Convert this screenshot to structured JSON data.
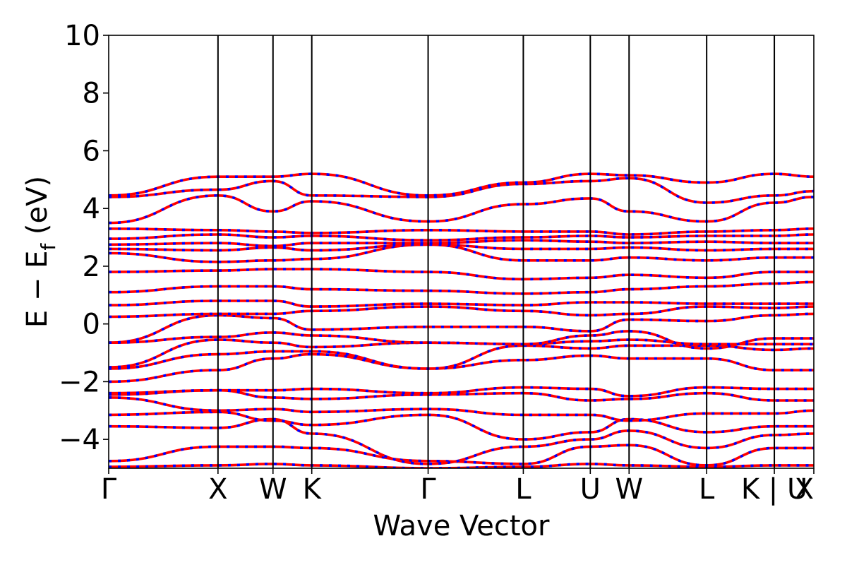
{
  "chart_data": {
    "type": "line",
    "title": "",
    "xlabel": "Wave Vector",
    "ylabel_main": "E − E",
    "ylabel_sub": "f",
    "ylabel_unit": " (eV)",
    "ylim": [
      -5,
      10
    ],
    "yticks": [
      -4,
      -2,
      0,
      2,
      4,
      6,
      8,
      10
    ],
    "ytick_labels": [
      "−4",
      "−2",
      "0",
      "2",
      "4",
      "6",
      "8",
      "10"
    ],
    "xlim": [
      0,
      1
    ],
    "kpoints": [
      {
        "label": "Γ",
        "x": 0.0
      },
      {
        "label": "X",
        "x": 0.155
      },
      {
        "label": "W",
        "x": 0.233
      },
      {
        "label": "K",
        "x": 0.288
      },
      {
        "label": "Γ",
        "x": 0.453
      },
      {
        "label": "L",
        "x": 0.588
      },
      {
        "label": "U",
        "x": 0.683
      },
      {
        "label": "W",
        "x": 0.738
      },
      {
        "label": "L",
        "x": 0.848
      },
      {
        "label": "K | U",
        "x": 0.944
      },
      {
        "label": "X",
        "x": 1.0
      }
    ],
    "series": [
      {
        "name": "",
        "color": "#ff0000",
        "style": "solid"
      },
      {
        "name": "",
        "color": "#0000ff",
        "style": "dashed"
      }
    ],
    "bands": [
      [
        -4.95,
        -4.9,
        -4.85,
        -4.9,
        -5.0,
        -4.95,
        -4.85,
        -4.9,
        -4.95,
        -4.9,
        -4.9
      ],
      [
        -4.75,
        -4.25,
        -4.25,
        -4.3,
        -4.75,
        -4.85,
        -4.25,
        -4.2,
        -4.9,
        -4.3,
        -4.3
      ],
      [
        -3.55,
        -3.6,
        -3.3,
        -3.8,
        -4.85,
        -4.25,
        -4.0,
        -3.7,
        -4.3,
        -3.85,
        -3.8
      ],
      [
        -3.15,
        -3.05,
        -3.35,
        -3.5,
        -3.15,
        -4.0,
        -3.75,
        -3.3,
        -3.75,
        -3.55,
        -3.55
      ],
      [
        -2.55,
        -3.0,
        -2.95,
        -3.05,
        -2.95,
        -3.15,
        -3.15,
        -3.35,
        -3.1,
        -3.1,
        -3.0
      ],
      [
        -2.45,
        -2.3,
        -2.55,
        -2.6,
        -2.45,
        -2.4,
        -2.65,
        -2.6,
        -2.4,
        -2.65,
        -2.65
      ],
      [
        -2.4,
        -2.3,
        -2.3,
        -2.25,
        -2.4,
        -2.2,
        -2.25,
        -2.5,
        -2.2,
        -2.25,
        -2.25
      ],
      [
        -2.0,
        -1.6,
        -1.2,
        -1.05,
        -1.55,
        -1.25,
        -1.1,
        -1.2,
        -1.2,
        -1.6,
        -1.6
      ],
      [
        -1.55,
        -1.05,
        -0.95,
        -0.95,
        -1.55,
        -0.75,
        -0.85,
        -0.75,
        -0.75,
        -0.9,
        -0.85
      ],
      [
        -1.5,
        -0.55,
        -0.65,
        -0.8,
        -0.65,
        -0.7,
        -0.6,
        -0.55,
        -0.7,
        -0.7,
        -0.7
      ],
      [
        -0.65,
        -0.45,
        -0.3,
        -0.4,
        -0.65,
        -0.7,
        -0.4,
        -0.25,
        -0.85,
        -0.5,
        -0.5
      ],
      [
        -0.65,
        0.3,
        0.2,
        -0.2,
        -0.1,
        -0.1,
        -0.25,
        0.15,
        0.1,
        0.3,
        0.35
      ],
      [
        0.25,
        0.35,
        0.35,
        0.45,
        0.6,
        0.45,
        0.3,
        0.35,
        0.6,
        0.55,
        0.6
      ],
      [
        0.65,
        0.8,
        0.8,
        0.6,
        0.7,
        0.65,
        0.75,
        0.75,
        0.7,
        0.7,
        0.7
      ],
      [
        1.1,
        1.3,
        1.3,
        1.2,
        1.15,
        1.05,
        1.1,
        1.2,
        1.3,
        1.4,
        1.45
      ],
      [
        1.8,
        1.85,
        1.9,
        1.9,
        1.8,
        1.55,
        1.6,
        1.7,
        1.6,
        1.8,
        1.8
      ],
      [
        2.45,
        2.15,
        2.2,
        2.25,
        2.75,
        2.2,
        2.2,
        2.3,
        2.2,
        2.3,
        2.3
      ],
      [
        2.6,
        2.55,
        2.65,
        2.55,
        2.75,
        2.6,
        2.6,
        2.65,
        2.55,
        2.6,
        2.6
      ],
      [
        2.75,
        2.8,
        2.7,
        2.8,
        2.8,
        2.9,
        2.85,
        2.8,
        2.85,
        2.8,
        2.8
      ],
      [
        2.95,
        3.1,
        3.0,
        3.05,
        2.9,
        3.0,
        3.05,
        3.0,
        3.05,
        3.05,
        3.1
      ],
      [
        3.3,
        3.25,
        3.2,
        3.15,
        3.25,
        3.2,
        3.2,
        3.1,
        3.2,
        3.25,
        3.3
      ],
      [
        3.5,
        4.45,
        3.9,
        4.25,
        3.55,
        4.15,
        4.35,
        3.9,
        3.55,
        4.2,
        4.4
      ],
      [
        4.4,
        4.65,
        4.95,
        4.45,
        4.4,
        4.85,
        4.95,
        5.05,
        4.2,
        4.45,
        4.6
      ],
      [
        4.45,
        5.1,
        5.1,
        5.2,
        4.45,
        4.9,
        5.2,
        5.15,
        4.9,
        5.2,
        5.1
      ]
    ]
  }
}
